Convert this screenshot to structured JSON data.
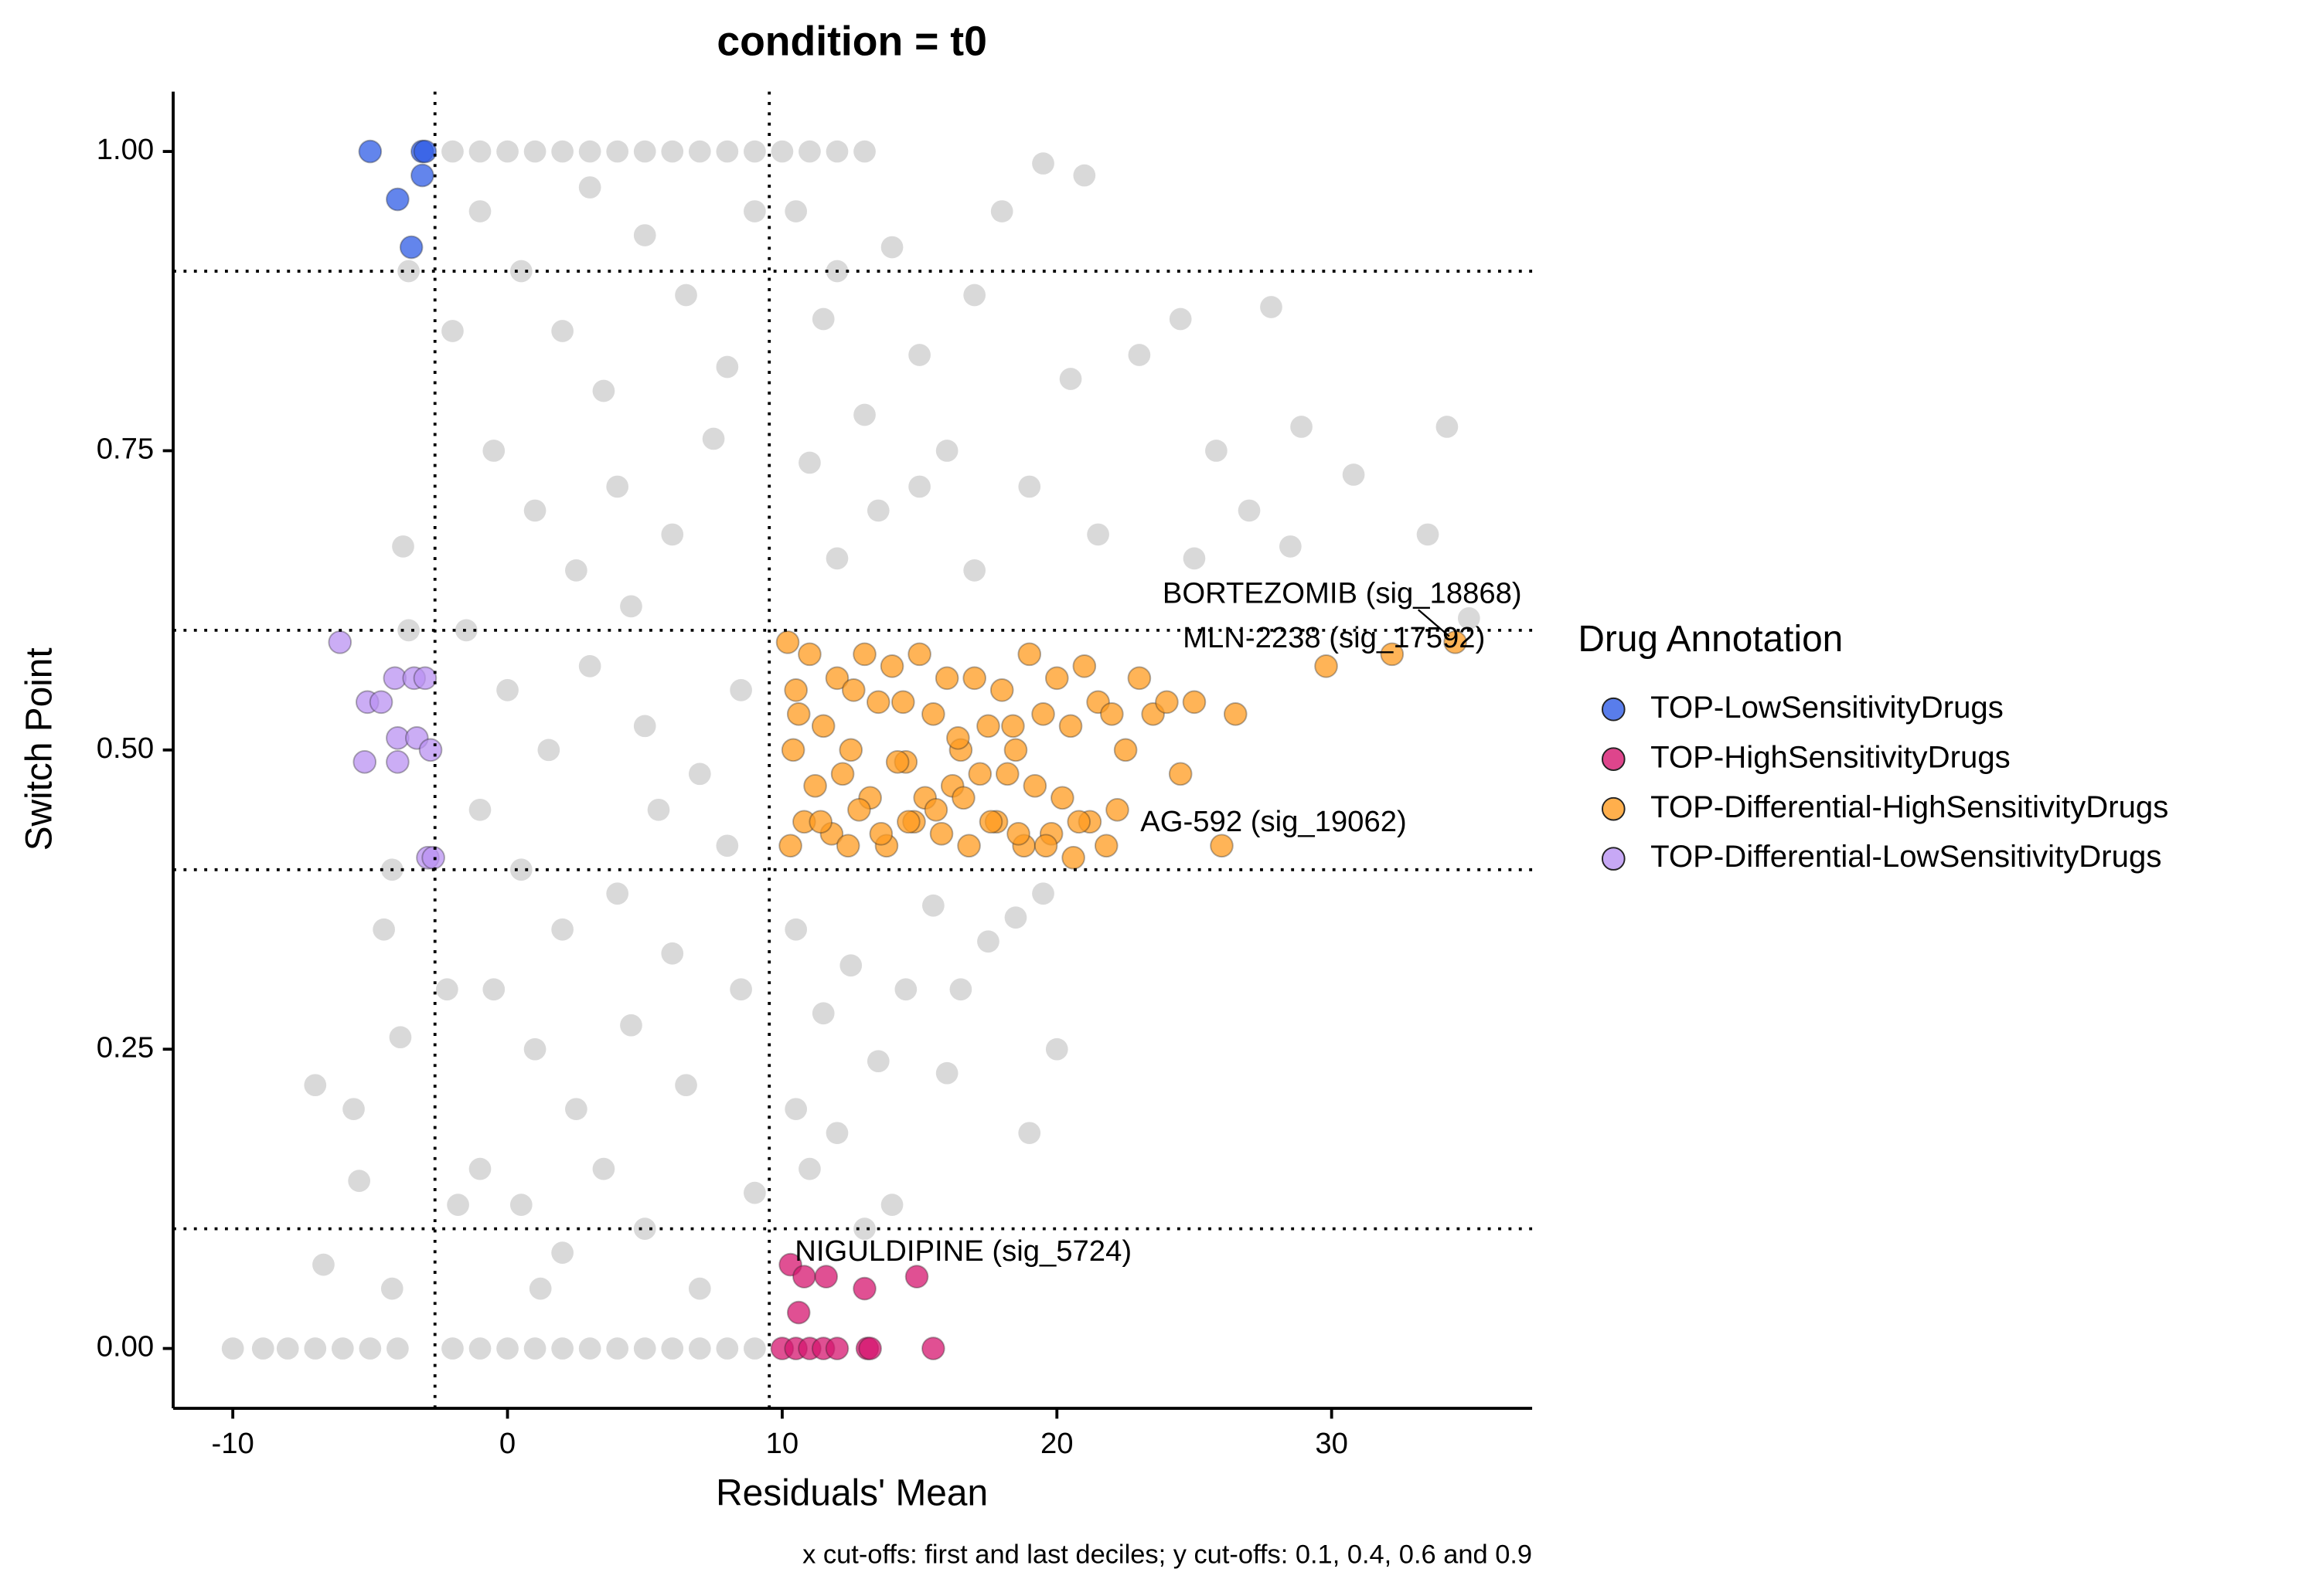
{
  "chart_data": {
    "type": "scatter",
    "title": "condition = t0",
    "x_label": "Residuals' Mean",
    "y_label": "Switch Point",
    "caption": "x cut-offs: first and last deciles; y cut-offs: 0.1, 0.4, 0.6 and 0.9",
    "legend_title": "Drug Annotation",
    "xlim": [
      -12.17,
      37.3
    ],
    "ylim": [
      -0.05,
      1.05
    ],
    "xticks": [
      -10,
      0,
      10,
      20,
      30
    ],
    "yticks": [
      {
        "value": 0,
        "label": "0.00"
      },
      {
        "value": 0.25,
        "label": "0.25"
      },
      {
        "value": 0.5,
        "label": "0.50"
      },
      {
        "value": 0.75,
        "label": "0.75"
      },
      {
        "value": 1,
        "label": "1.00"
      }
    ],
    "vlines": [
      -2.64,
      9.53
    ],
    "hlines": [
      0.1,
      0.4,
      0.6,
      0.9
    ],
    "series": [
      {
        "color": "#c0c0c0",
        "x": [
          -2,
          -1,
          0,
          1,
          2,
          3,
          4,
          5,
          6,
          7,
          8,
          9,
          10,
          11,
          12,
          13,
          -10,
          -8.9,
          -8,
          -7,
          -6,
          -5,
          -4,
          -2,
          -1,
          0,
          1,
          2,
          3,
          4,
          5,
          6,
          7,
          8,
          9,
          -1,
          0.5,
          2,
          3.5,
          5,
          6.5,
          8,
          9,
          -0.5,
          1,
          2.5,
          4,
          6,
          7.5,
          -1.5,
          0,
          1.5,
          3,
          5,
          7,
          8.5,
          -1,
          0.5,
          2,
          4,
          6,
          8,
          -0.5,
          1,
          2.5,
          4.5,
          6.5,
          8.5,
          -1,
          0.5,
          2,
          3.5,
          5,
          7,
          9,
          -2,
          -2.2,
          -1.8,
          3,
          4.5,
          5.5,
          1.2,
          -7,
          -5.6,
          -5.4,
          -6.7,
          -4.5,
          -3.8,
          -4.2,
          -3.6,
          -3.9,
          -4.2,
          -3.6,
          10.5,
          11.5,
          12,
          13,
          14,
          15,
          16,
          17,
          18,
          19.5,
          21,
          20.5,
          23,
          24.5,
          27.8,
          25.8,
          28.9,
          34.2,
          30.8,
          33.5,
          27,
          25,
          21.5,
          19,
          17,
          15,
          13.5,
          12,
          11,
          10.5,
          11.5,
          12.5,
          13.5,
          14.5,
          15.5,
          16.5,
          17.5,
          18.5,
          19.5,
          20,
          19,
          12,
          11,
          10.5,
          14,
          13,
          16,
          35,
          28.5
        ],
        "y": [
          1,
          1,
          1,
          1,
          1,
          1,
          1,
          1,
          1,
          1,
          1,
          1,
          1,
          1,
          1,
          1,
          0,
          0,
          0,
          0,
          0,
          0,
          0,
          0,
          0,
          0,
          0,
          0,
          0,
          0,
          0,
          0,
          0,
          0,
          0,
          0.95,
          0.9,
          0.85,
          0.8,
          0.93,
          0.88,
          0.82,
          0.95,
          0.75,
          0.7,
          0.65,
          0.72,
          0.68,
          0.76,
          0.6,
          0.55,
          0.5,
          0.57,
          0.52,
          0.48,
          0.55,
          0.45,
          0.4,
          0.35,
          0.38,
          0.33,
          0.42,
          0.3,
          0.25,
          0.2,
          0.27,
          0.22,
          0.3,
          0.15,
          0.12,
          0.08,
          0.15,
          0.1,
          0.05,
          0.13,
          0.85,
          0.3,
          0.12,
          0.97,
          0.62,
          0.45,
          0.05,
          0.22,
          0.2,
          0.14,
          0.07,
          0.35,
          0.67,
          0.4,
          0.9,
          0.26,
          0.05,
          0.6,
          0.95,
          0.86,
          0.9,
          0.78,
          0.92,
          0.83,
          0.75,
          0.88,
          0.95,
          0.99,
          0.98,
          0.81,
          0.83,
          0.86,
          0.87,
          0.75,
          0.77,
          0.77,
          0.73,
          0.68,
          0.7,
          0.66,
          0.68,
          0.72,
          0.65,
          0.72,
          0.7,
          0.66,
          0.74,
          0.35,
          0.28,
          0.32,
          0.24,
          0.3,
          0.37,
          0.3,
          0.34,
          0.36,
          0.38,
          0.25,
          0.18,
          0.18,
          0.15,
          0.2,
          0.12,
          0.1,
          0.23,
          0.61,
          0.67
        ]
      },
      {
        "name": "TOP-LowSensitivityDrugs",
        "color": "#2f5ce6",
        "x": [
          -5,
          -3.1,
          -3,
          -4,
          -3.1,
          -3.5
        ],
        "y": [
          1,
          1,
          1,
          0.96,
          0.98,
          0.92
        ]
      },
      {
        "name": "TOP-HighSensitivityDrugs",
        "color": "#d6166f",
        "x": [
          10.3,
          10.8,
          11.6,
          10.6,
          13,
          14.9,
          10,
          10.5,
          11,
          11.5,
          12,
          13.1,
          13.2,
          15.5
        ],
        "y": [
          0.07,
          0.06,
          0.06,
          0.03,
          0.05,
          0.06,
          0,
          0,
          0,
          0,
          0,
          0,
          0,
          0
        ],
        "point_labels": [
          "NIGULDIPINE (sig_5724)",
          null,
          null,
          null,
          null,
          null,
          null,
          null,
          null,
          null,
          null,
          null,
          null,
          null
        ]
      },
      {
        "name": "TOP-Differential-HighSensitivityDrugs",
        "color": "#ff9b1f",
        "x": [
          10.2,
          10.5,
          11,
          11.5,
          12,
          12.5,
          13,
          13.5,
          14,
          14.5,
          15,
          15.5,
          16,
          16.5,
          17,
          17.5,
          18,
          18.5,
          19,
          19.5,
          20,
          20.5,
          21,
          21.5,
          22,
          22.5,
          23,
          23.5,
          24,
          24.5,
          10.4,
          11.2,
          12.2,
          13.2,
          14.2,
          15.2,
          16.2,
          17.2,
          18.2,
          19.2,
          20.2,
          21.2,
          22.2,
          10.8,
          11.8,
          12.8,
          13.8,
          14.8,
          15.8,
          16.8,
          17.8,
          18.8,
          19.8,
          20.8,
          21.8,
          10.3,
          11.4,
          12.4,
          13.6,
          14.6,
          15.6,
          16.6,
          17.6,
          18.6,
          19.6,
          20.6,
          10.6,
          12.6,
          14.4,
          16.4,
          18.4,
          25,
          26.5,
          29.8,
          32.2,
          34.5,
          26
        ],
        "y": [
          0.59,
          0.55,
          0.58,
          0.52,
          0.56,
          0.5,
          0.58,
          0.54,
          0.57,
          0.49,
          0.58,
          0.53,
          0.56,
          0.5,
          0.56,
          0.52,
          0.55,
          0.5,
          0.58,
          0.53,
          0.56,
          0.52,
          0.57,
          0.54,
          0.53,
          0.5,
          0.56,
          0.53,
          0.54,
          0.48,
          0.5,
          0.47,
          0.48,
          0.46,
          0.49,
          0.46,
          0.47,
          0.48,
          0.48,
          0.47,
          0.46,
          0.44,
          0.45,
          0.44,
          0.43,
          0.45,
          0.42,
          0.44,
          0.43,
          0.42,
          0.44,
          0.42,
          0.43,
          0.44,
          0.42,
          0.42,
          0.44,
          0.42,
          0.43,
          0.44,
          0.45,
          0.46,
          0.44,
          0.43,
          0.42,
          0.41,
          0.53,
          0.55,
          0.54,
          0.51,
          0.52,
          0.54,
          0.53,
          0.57,
          0.58,
          0.59,
          0.42
        ],
        "point_labels": [
          null,
          null,
          null,
          null,
          null,
          null,
          null,
          null,
          null,
          null,
          null,
          null,
          null,
          null,
          null,
          null,
          null,
          null,
          null,
          null,
          null,
          null,
          null,
          null,
          null,
          null,
          null,
          null,
          null,
          null,
          null,
          null,
          null,
          null,
          null,
          null,
          null,
          null,
          null,
          null,
          null,
          null,
          null,
          null,
          null,
          null,
          null,
          null,
          null,
          null,
          null,
          null,
          null,
          null,
          null,
          null,
          null,
          null,
          null,
          null,
          null,
          null,
          null,
          null,
          null,
          null,
          null,
          null,
          null,
          null,
          null,
          null,
          null,
          null,
          "MLN-2238 (sig_17592)",
          "BORTEZOMIB (sig_18868)",
          "AG-592 (sig_19062)"
        ]
      },
      {
        "name": "TOP-Differential-LowSensitivityDrugs",
        "color": "#b992f2",
        "x": [
          -6.1,
          -5.1,
          -4.6,
          -4.1,
          -3.4,
          -3,
          -4,
          -3.3,
          -2.8,
          -5.2,
          -4,
          -2.9,
          -2.7
        ],
        "y": [
          0.59,
          0.54,
          0.54,
          0.56,
          0.56,
          0.56,
          0.51,
          0.51,
          0.5,
          0.49,
          0.49,
          0.41,
          0.41
        ]
      }
    ]
  }
}
